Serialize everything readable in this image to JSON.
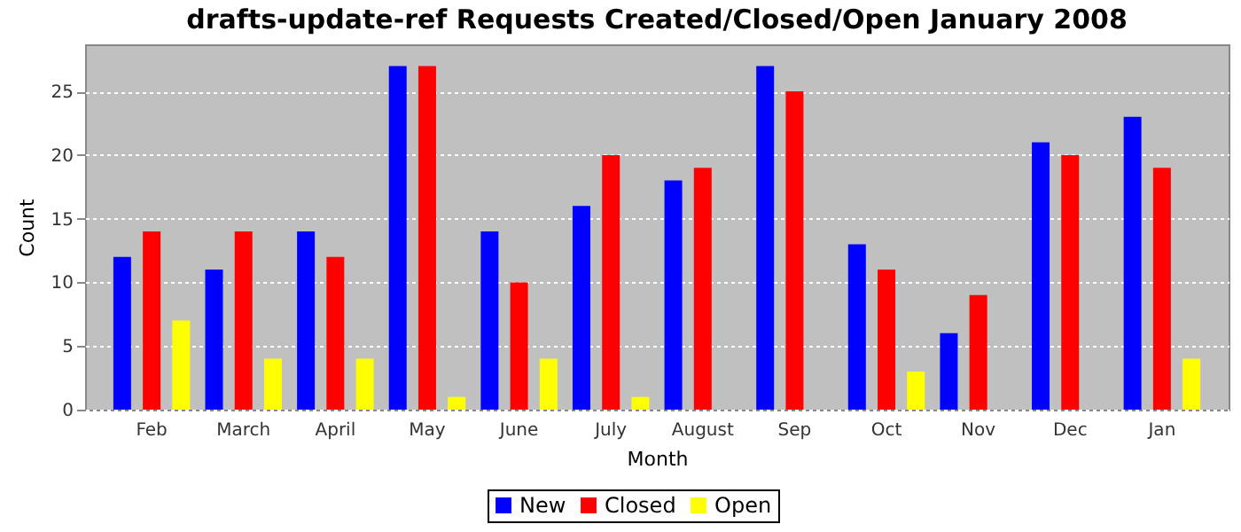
{
  "chart_data": {
    "type": "bar",
    "title": "drafts-update-ref Requests Created/Closed/Open January 2008",
    "xlabel": "Month",
    "ylabel": "Count",
    "categories": [
      "Feb",
      "March",
      "April",
      "May",
      "June",
      "July",
      "August",
      "Sep",
      "Oct",
      "Nov",
      "Dec",
      "Jan"
    ],
    "series": [
      {
        "name": "New",
        "color": "#0000ff",
        "values": [
          12,
          11,
          14,
          27,
          14,
          16,
          18,
          27,
          13,
          6,
          21,
          23
        ]
      },
      {
        "name": "Closed",
        "color": "#ff0000",
        "values": [
          14,
          14,
          12,
          27,
          10,
          20,
          19,
          25,
          11,
          9,
          20,
          19
        ]
      },
      {
        "name": "Open",
        "color": "#ffff00",
        "values": [
          7,
          4,
          4,
          1,
          4,
          1,
          0,
          0,
          3,
          0,
          0,
          4
        ]
      }
    ],
    "ylim": [
      0,
      28.7
    ],
    "yticks": [
      0,
      5,
      10,
      15,
      20,
      25
    ],
    "grid": "y",
    "legend": "bottom"
  }
}
